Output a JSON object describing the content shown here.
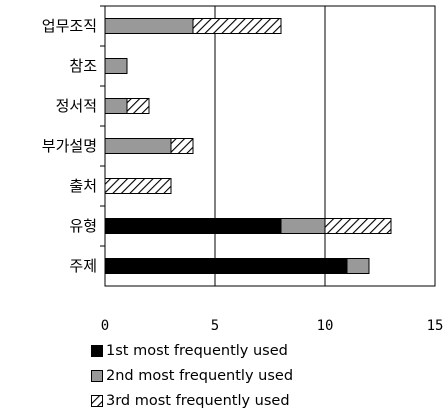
{
  "chart_data": {
    "type": "bar",
    "orientation": "horizontal",
    "stacked": true,
    "categories": [
      "업무조직",
      "참조",
      "정서적",
      "부가설명",
      "출처",
      "유형",
      "주제"
    ],
    "series": [
      {
        "name": "1st most frequently used",
        "values": [
          0,
          0,
          0,
          0,
          0,
          8,
          11
        ],
        "color": "#000000",
        "pattern": "solid"
      },
      {
        "name": "2nd most frequently used",
        "values": [
          4,
          1,
          1,
          3,
          0,
          2,
          1
        ],
        "color": "#999999",
        "pattern": "solid"
      },
      {
        "name": "3rd most frequently used",
        "values": [
          4,
          0,
          1,
          1,
          3,
          3,
          0
        ],
        "color": "#ffffff",
        "pattern": "diagonal-hatch"
      }
    ],
    "xlim": [
      0,
      15
    ],
    "xticks": [
      "0",
      "5",
      "10",
      "15"
    ],
    "gridlines_at": [
      5,
      10
    ],
    "grid": true,
    "legend_position": "bottom",
    "title": "",
    "xlabel": "",
    "ylabel": ""
  }
}
